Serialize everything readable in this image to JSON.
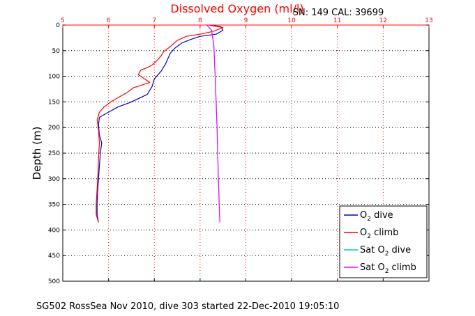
{
  "chart_data": {
    "type": "line",
    "title": "Dissolved Oxygen (ml/l)",
    "sn_label": "SN: 149  CAL: 39699",
    "ylabel": "Depth (m)",
    "footer": "SG502 RossSea Nov 2010, dive 303 started 22-Dec-2010 19:05:10",
    "xlim": [
      5,
      13
    ],
    "ylim": [
      0,
      500
    ],
    "y_inverted": true,
    "x_axis_position": "top",
    "xticks": [
      5,
      6,
      7,
      8,
      9,
      10,
      11,
      12,
      13
    ],
    "yticks": [
      0,
      50,
      100,
      150,
      200,
      250,
      300,
      350,
      400,
      450,
      500
    ],
    "grid": true,
    "legend_placement": "bottom-right",
    "colors": {
      "axis_top": "#ff0000",
      "axis_left": "#000000"
    },
    "series": [
      {
        "name": "O2 dive",
        "legend_main": "O",
        "legend_sub": "2",
        "legend_suffix": " dive",
        "color": "#0000cc",
        "points": [
          [
            8.2,
            0
          ],
          [
            8.45,
            3
          ],
          [
            8.5,
            10
          ],
          [
            8.35,
            18
          ],
          [
            8.0,
            22
          ],
          [
            7.8,
            28
          ],
          [
            7.6,
            35
          ],
          [
            7.45,
            45
          ],
          [
            7.35,
            55
          ],
          [
            7.3,
            65
          ],
          [
            7.25,
            75
          ],
          [
            7.15,
            90
          ],
          [
            7.0,
            105
          ],
          [
            6.95,
            120
          ],
          [
            6.85,
            135
          ],
          [
            6.5,
            150
          ],
          [
            6.2,
            160
          ],
          [
            6.0,
            170
          ],
          [
            5.8,
            180
          ],
          [
            5.78,
            195
          ],
          [
            5.8,
            215
          ],
          [
            5.85,
            230
          ],
          [
            5.82,
            250
          ],
          [
            5.8,
            275
          ],
          [
            5.78,
            300
          ],
          [
            5.76,
            325
          ],
          [
            5.75,
            350
          ],
          [
            5.75,
            370
          ],
          [
            5.78,
            385
          ]
        ]
      },
      {
        "name": "O2 climb",
        "legend_main": "O",
        "legend_sub": "2",
        "legend_suffix": " climb",
        "color": "#ff0000",
        "points": [
          [
            8.2,
            0
          ],
          [
            8.5,
            5
          ],
          [
            8.3,
            12
          ],
          [
            8.0,
            18
          ],
          [
            7.7,
            22
          ],
          [
            7.5,
            30
          ],
          [
            7.35,
            42
          ],
          [
            7.2,
            52
          ],
          [
            7.15,
            60
          ],
          [
            7.05,
            70
          ],
          [
            6.95,
            78
          ],
          [
            6.85,
            83
          ],
          [
            6.7,
            88
          ],
          [
            6.65,
            97
          ],
          [
            6.9,
            112
          ],
          [
            6.7,
            118
          ],
          [
            6.55,
            122
          ],
          [
            6.4,
            132
          ],
          [
            6.2,
            142
          ],
          [
            6.05,
            150
          ],
          [
            5.9,
            160
          ],
          [
            5.8,
            170
          ],
          [
            5.75,
            185
          ],
          [
            5.78,
            205
          ],
          [
            5.8,
            230
          ],
          [
            5.78,
            260
          ],
          [
            5.77,
            290
          ],
          [
            5.75,
            320
          ],
          [
            5.73,
            350
          ],
          [
            5.73,
            370
          ],
          [
            5.78,
            385
          ]
        ]
      },
      {
        "name": "Sat O2 dive",
        "legend_main": "Sat O",
        "legend_sub": "2",
        "legend_suffix": " dive",
        "color": "#00cccc",
        "points": [
          [
            8.15,
            0
          ],
          [
            8.25,
            10
          ],
          [
            8.3,
            40
          ],
          [
            8.33,
            100
          ],
          [
            8.37,
            200
          ],
          [
            8.4,
            300
          ],
          [
            8.43,
            380
          ]
        ]
      },
      {
        "name": "Sat O2 climb",
        "legend_main": "Sat O",
        "legend_sub": "2",
        "legend_suffix": " climb",
        "color": "#ff00ff",
        "points": [
          [
            8.15,
            0
          ],
          [
            8.25,
            10
          ],
          [
            8.3,
            40
          ],
          [
            8.33,
            100
          ],
          [
            8.37,
            200
          ],
          [
            8.4,
            300
          ],
          [
            8.43,
            385
          ]
        ]
      }
    ]
  }
}
